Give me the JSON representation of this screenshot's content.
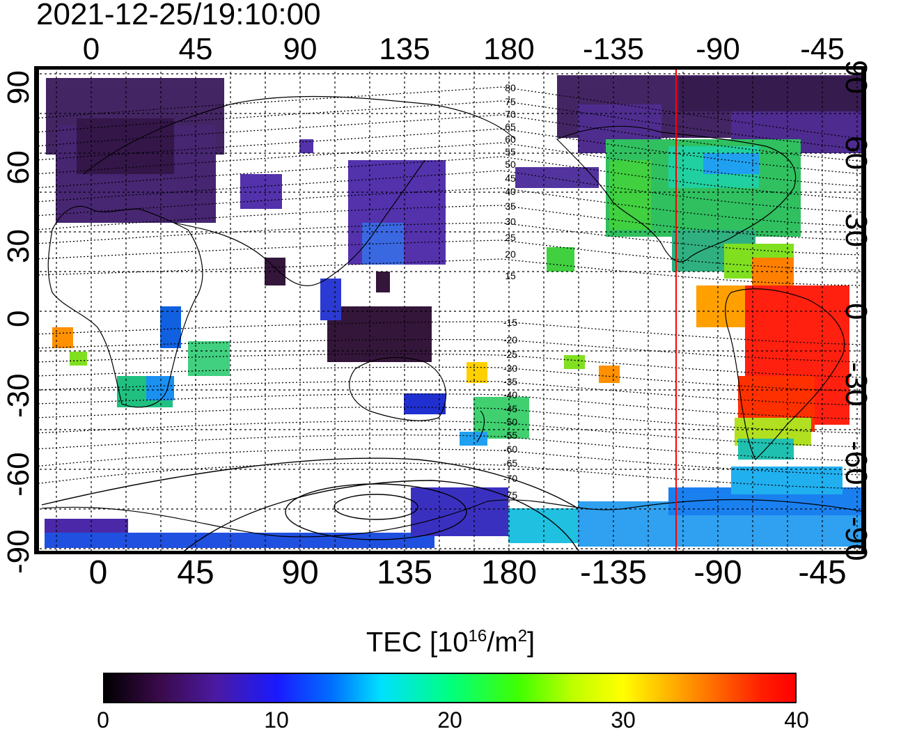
{
  "timestamp": "2021-12-25/19:10:00",
  "map": {
    "top_lon_ticks": [
      "0",
      "45",
      "90",
      "135",
      "180",
      "-135",
      "-90",
      "-45"
    ],
    "bottom_lon_ticks": [
      "0",
      "45",
      "90",
      "135",
      "180",
      "-135",
      "-90",
      "-45"
    ],
    "left_lat_ticks": [
      "90",
      "60",
      "30",
      "0",
      "-30",
      "-60",
      "-90"
    ],
    "right_lat_ticks": [
      "90",
      "60",
      "30",
      "0",
      "-30",
      "-60",
      "-90"
    ],
    "lon_range": [
      -22,
      338
    ],
    "lat_range": [
      -90,
      90
    ],
    "sun_line_longitude": -107,
    "sun_line_color": "#ff0000",
    "magnetic_contour_labels_north": [
      "80",
      "75",
      "70",
      "65",
      "60",
      "55",
      "50",
      "45",
      "40",
      "35",
      "30",
      "25",
      "20",
      "15"
    ],
    "magnetic_contour_labels_south": [
      "-15",
      "-20",
      "-25",
      "-30",
      "-35",
      "-40",
      "-45",
      "-50",
      "-55",
      "-60",
      "-65",
      "-70",
      "-75"
    ]
  },
  "colorbar": {
    "title": "TEC  [10",
    "title_exp": "16",
    "title_unit": "/m",
    "title_unit_exp": "2",
    "title_end": "]",
    "ticks": [
      "0",
      "10",
      "20",
      "30",
      "40"
    ],
    "range": [
      0,
      40
    ]
  }
}
